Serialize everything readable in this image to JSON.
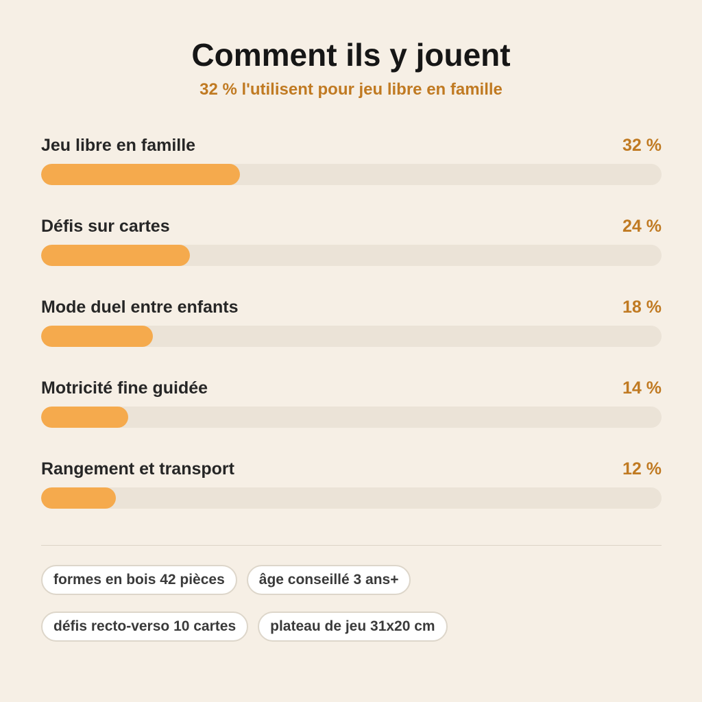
{
  "title": "Comment ils y jouent",
  "subtitle": "32 % l'utilisent pour jeu libre en famille",
  "chart_data": {
    "type": "bar",
    "orientation": "horizontal",
    "title": "Comment ils y jouent",
    "subtitle": "32 % l'utilisent pour jeu libre en famille",
    "xlim": [
      0,
      100
    ],
    "unit": "%",
    "categories": [
      "Jeu libre en famille",
      "Défis sur cartes",
      "Mode duel entre enfants",
      "Motricité fine guidée",
      "Rangement et transport"
    ],
    "values": [
      32,
      24,
      18,
      14,
      12
    ],
    "value_labels": [
      "32 %",
      "24 %",
      "18 %",
      "14 %",
      "12 %"
    ],
    "bar_color": "#f5aa4d",
    "track_color": "#ebe3d7",
    "value_color": "#c07a22",
    "grid": false,
    "legend": "none"
  },
  "tags": [
    "formes en bois 42 pièces",
    "âge conseillé 3 ans+",
    "défis recto-verso 10 cartes",
    "plateau de jeu 31x20 cm"
  ]
}
